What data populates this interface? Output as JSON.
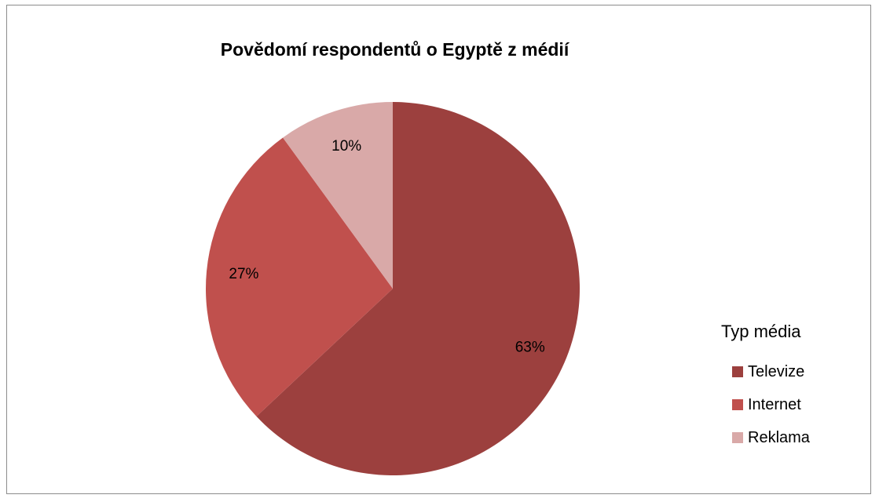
{
  "chart_data": {
    "type": "pie",
    "title": "Povědomí respondentů o Egyptě z médií",
    "legend_title": "Typ média",
    "legend_position": "right",
    "categories": [
      "Televize",
      "Internet",
      "Reklama"
    ],
    "values": [
      63,
      27,
      10
    ],
    "labels": [
      "63%",
      "27%",
      "10%"
    ],
    "colors": [
      "#9c403e",
      "#c0504d",
      "#d9a9a8"
    ]
  }
}
